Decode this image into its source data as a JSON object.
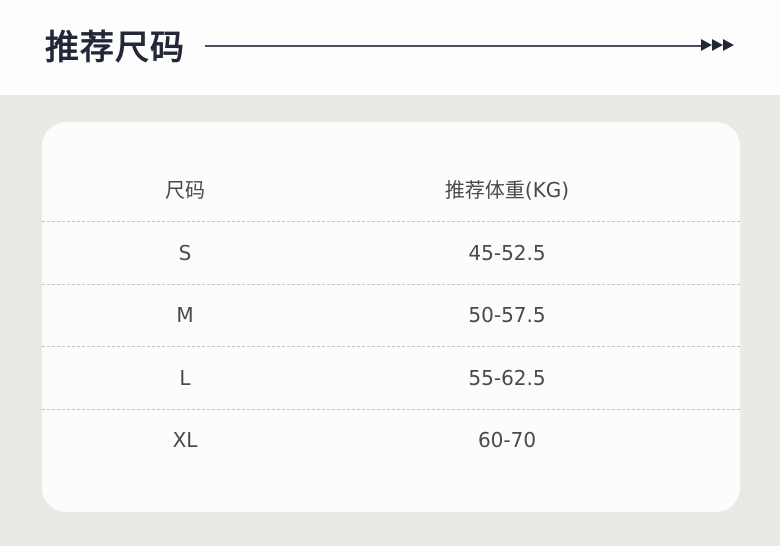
{
  "header": {
    "title": "推荐尺码"
  },
  "table": {
    "columns": [
      "尺码",
      "推荐体重(KG)"
    ],
    "rows": [
      [
        "S",
        "45-52.5"
      ],
      [
        "M",
        "50-57.5"
      ],
      [
        "L",
        "55-62.5"
      ],
      [
        "XL",
        "60-70"
      ]
    ]
  },
  "colors": {
    "title": "#232838",
    "background": "#e9e9e6",
    "card": "#fcfcfc"
  }
}
